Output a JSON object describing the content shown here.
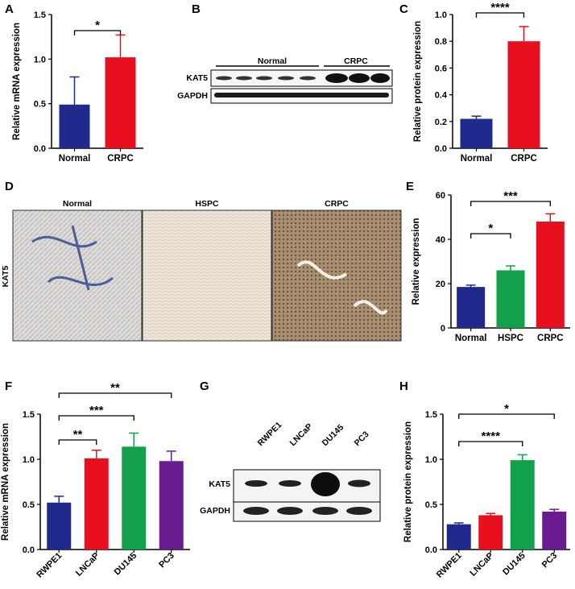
{
  "panel_letters": {
    "A": "A",
    "B": "B",
    "C": "C",
    "D": "D",
    "E": "E",
    "F": "F",
    "G": "G",
    "H": "H"
  },
  "colors": {
    "blue": "#1f2a8c",
    "red": "#e8101e",
    "green": "#12a04a",
    "purple": "#6a1b8f"
  },
  "blot_B": {
    "group1": "Normal",
    "group2": "CRPC",
    "rows": [
      "KAT5",
      "GAPDH"
    ]
  },
  "ihc_D": {
    "row_label": "KAT5",
    "columns": [
      "Normal",
      "HSPC",
      "CRPC"
    ]
  },
  "blot_G": {
    "lanes": [
      "RWPE1",
      "LNCaP",
      "DU145",
      "PC3"
    ],
    "rows": [
      "KAT5",
      "GAPDH"
    ]
  },
  "chart_data": [
    {
      "panel": "A",
      "type": "bar",
      "categories": [
        "Normal",
        "CRPC"
      ],
      "values": [
        0.49,
        1.02
      ],
      "errors": [
        0.31,
        0.25
      ],
      "colors": [
        "#1f2a8c",
        "#e8101e"
      ],
      "ylabel": "Relative mRNA expression",
      "ylim": [
        0,
        1.5
      ],
      "yticks": [
        "0.0",
        "0.5",
        "1.0",
        "1.5"
      ],
      "significance": [
        {
          "from": 0,
          "to": 1,
          "label": "*"
        }
      ]
    },
    {
      "panel": "C",
      "type": "bar",
      "categories": [
        "Normal",
        "CRPC"
      ],
      "values": [
        0.22,
        0.8
      ],
      "errors": [
        0.02,
        0.11
      ],
      "colors": [
        "#1f2a8c",
        "#e8101e"
      ],
      "ylabel": "Relative protein expression",
      "ylim": [
        0,
        1.0
      ],
      "yticks": [
        "0.0",
        "0.2",
        "0.4",
        "0.6",
        "0.8",
        "1.0"
      ],
      "significance": [
        {
          "from": 0,
          "to": 1,
          "label": "****"
        }
      ]
    },
    {
      "panel": "E",
      "type": "bar",
      "categories": [
        "Normal",
        "HSPC",
        "CRPC"
      ],
      "values": [
        18.5,
        26,
        48
      ],
      "errors": [
        0.8,
        2,
        3.5
      ],
      "colors": [
        "#1f2a8c",
        "#12a04a",
        "#e8101e"
      ],
      "ylabel": "Relative expression",
      "ylim": [
        0,
        60
      ],
      "yticks": [
        "0",
        "20",
        "40",
        "60"
      ],
      "significance": [
        {
          "from": 0,
          "to": 1,
          "label": "*"
        },
        {
          "from": 0,
          "to": 2,
          "label": "***"
        }
      ]
    },
    {
      "panel": "F",
      "type": "bar",
      "categories": [
        "RWPE1",
        "LNCaP",
        "DU145",
        "PC3"
      ],
      "values": [
        0.52,
        1.01,
        1.14,
        0.98
      ],
      "errors": [
        0.07,
        0.09,
        0.15,
        0.11
      ],
      "colors": [
        "#1f2a8c",
        "#e8101e",
        "#12a04a",
        "#6a1b8f"
      ],
      "ylabel": "Relative mRNA expression",
      "ylim": [
        0,
        1.5
      ],
      "yticks": [
        "0.0",
        "0.5",
        "1.0",
        "1.5"
      ],
      "significance": [
        {
          "from": 0,
          "to": 1,
          "label": "**"
        },
        {
          "from": 0,
          "to": 2,
          "label": "***"
        },
        {
          "from": 0,
          "to": 3,
          "label": "**"
        }
      ]
    },
    {
      "panel": "H",
      "type": "bar",
      "categories": [
        "RWPE1",
        "LNCaP",
        "DU145",
        "PC3"
      ],
      "values": [
        0.28,
        0.38,
        0.99,
        0.42
      ],
      "errors": [
        0.015,
        0.02,
        0.06,
        0.025
      ],
      "colors": [
        "#1f2a8c",
        "#e8101e",
        "#12a04a",
        "#6a1b8f"
      ],
      "ylabel": "Relative protein expression",
      "ylim": [
        0,
        1.5
      ],
      "yticks": [
        "0.0",
        "0.5",
        "1.0",
        "1.5"
      ],
      "significance": [
        {
          "from": 0,
          "to": 2,
          "label": "****"
        },
        {
          "from": 0,
          "to": 3,
          "label": "*"
        }
      ]
    }
  ]
}
